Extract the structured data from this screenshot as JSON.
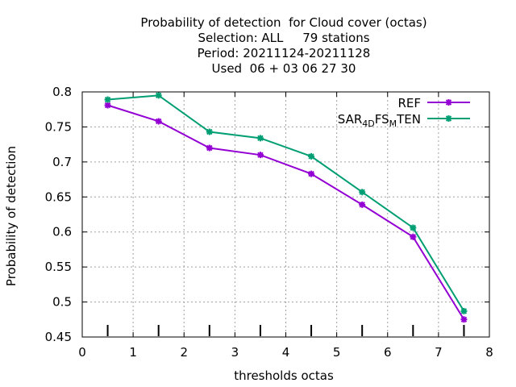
{
  "title": {
    "line1": "Probability of detection  for Cloud cover (octas)",
    "line2": "Selection: ALL     79 stations",
    "line3": "Period: 20211124-20211128",
    "line4": "Used  06 + 03 06 27 30"
  },
  "chart_data": {
    "type": "line",
    "xlabel": "thresholds octas",
    "ylabel": "Probability of detection",
    "xlim": [
      0,
      8
    ],
    "ylim": [
      0.45,
      0.8
    ],
    "xticks": [
      "0",
      "1",
      "2",
      "3",
      "4",
      "5",
      "6",
      "7",
      "8"
    ],
    "yticks": [
      "0.45",
      "0.5",
      "0.55",
      "0.6",
      "0.65",
      "0.7",
      "0.75",
      "0.8"
    ],
    "grid": true,
    "legend_position": "top-right",
    "x": [
      0.5,
      1.5,
      2.5,
      3.5,
      4.5,
      5.5,
      6.5,
      7.5
    ],
    "series": [
      {
        "name": "REF",
        "color": "#9400d3",
        "values": [
          0.781,
          0.758,
          0.72,
          0.71,
          0.683,
          0.639,
          0.593,
          0.475
        ]
      },
      {
        "name_main": "SAR",
        "name_sub1": "4D",
        "name_mid": "FS",
        "name_sub2": "M",
        "name_end": "TEN",
        "color": "#009e73",
        "values": [
          0.789,
          0.795,
          0.743,
          0.734,
          0.708,
          0.657,
          0.606,
          0.487
        ]
      }
    ],
    "threshold_markers_x": [
      0.5,
      1.5,
      2.5,
      3.5,
      4.5,
      5.5,
      6.5,
      7.5
    ]
  }
}
